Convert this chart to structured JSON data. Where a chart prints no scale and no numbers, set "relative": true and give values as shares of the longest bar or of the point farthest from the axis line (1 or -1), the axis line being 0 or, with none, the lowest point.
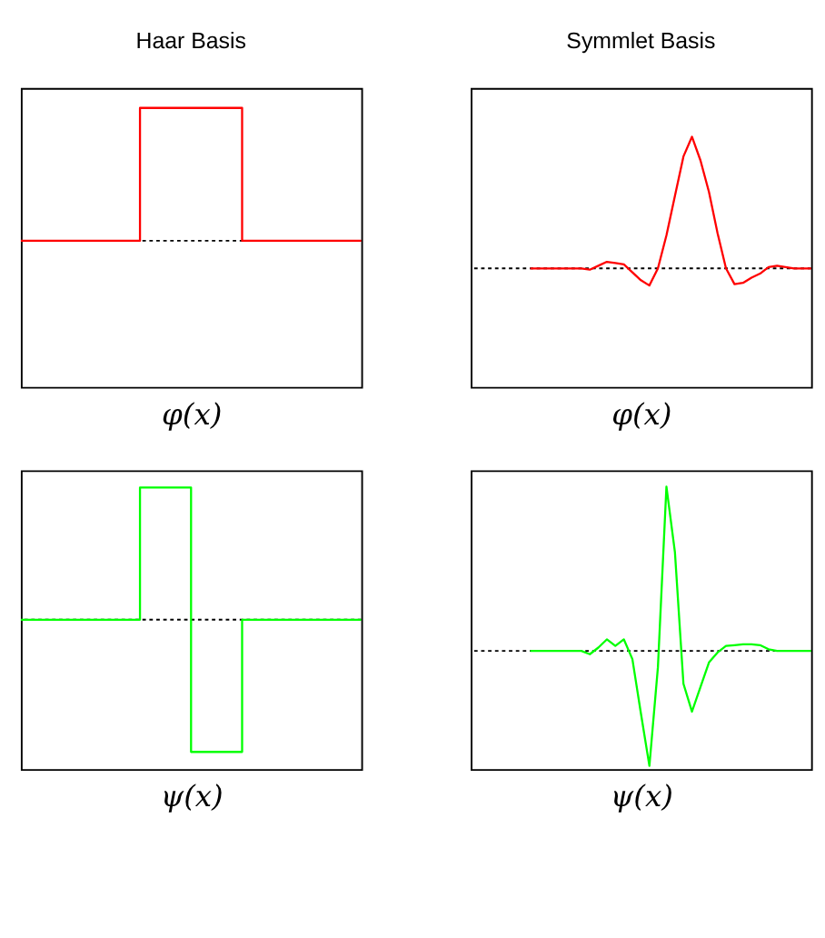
{
  "chart_data": [
    {
      "type": "step",
      "relative": true,
      "title": "Haar Basis",
      "xlabel": "φ(x)",
      "tick_labels": false,
      "grid": false,
      "categories": [
        null,
        null,
        null,
        null,
        null,
        null,
        null,
        null,
        null,
        null,
        null,
        null,
        null,
        null,
        null,
        null,
        null,
        null,
        null,
        null,
        null
      ],
      "series": [
        {
          "color": "#ff0000",
          "line_style": "solid",
          "values": [
            0,
            0,
            0,
            0,
            0,
            0,
            0,
            1,
            1,
            1,
            1,
            1,
            1,
            0,
            0,
            0,
            0,
            0,
            0,
            0,
            0
          ]
        }
      ],
      "ref_lines": [
        {
          "axis": "y",
          "value": 0,
          "color": "#000000",
          "line_style": "dotted"
        }
      ]
    },
    {
      "type": "line",
      "relative": true,
      "title": "Symmlet Basis",
      "xlabel": "φ(x)",
      "tick_labels": false,
      "grid": false,
      "categories": [
        null,
        null,
        null,
        null,
        null,
        null,
        null,
        null,
        null,
        null,
        null,
        null,
        null,
        null,
        null,
        null,
        null,
        null,
        null,
        null,
        null,
        null,
        null,
        null,
        null,
        null,
        null,
        null,
        null,
        null,
        null,
        null,
        null,
        null,
        null,
        null,
        null,
        null,
        null,
        null,
        null
      ],
      "ref_lines": [
        {
          "axis": "y",
          "value": 0,
          "color": "#000000",
          "line_style": "dotted"
        }
      ],
      "series": [
        {
          "color": "#ff0000",
          "line_style": "solid",
          "values": [
            null,
            null,
            null,
            null,
            null,
            null,
            null,
            0,
            0,
            0,
            0,
            0,
            0,
            0,
            -0.01,
            0.02,
            0.05,
            0.04,
            0.03,
            -0.03,
            -0.09,
            -0.13,
            0,
            0.25,
            0.55,
            0.85,
            1,
            0.82,
            0.58,
            0.27,
            0,
            -0.12,
            -0.11,
            -0.07,
            -0.04,
            0.01,
            0.02,
            0.01,
            0,
            0,
            0
          ]
        }
      ]
    },
    {
      "type": "step",
      "relative": true,
      "xlabel": "ψ(x)",
      "tick_labels": false,
      "grid": false,
      "categories": [
        null,
        null,
        null,
        null,
        null,
        null,
        null,
        null,
        null,
        null,
        null,
        null,
        null,
        null,
        null,
        null,
        null,
        null,
        null,
        null,
        null
      ],
      "series": [
        {
          "color": "#00ff00",
          "line_style": "solid",
          "values": [
            0,
            0,
            0,
            0,
            0,
            0,
            0,
            1,
            1,
            1,
            -1,
            -1,
            -1,
            0,
            0,
            0,
            0,
            0,
            0,
            0,
            0
          ]
        }
      ],
      "ref_lines": [
        {
          "axis": "y",
          "value": 0,
          "color": "#000000",
          "line_style": "dotted"
        }
      ]
    },
    {
      "type": "line",
      "relative": true,
      "xlabel": "ψ(x)",
      "tick_labels": false,
      "grid": false,
      "categories": [
        null,
        null,
        null,
        null,
        null,
        null,
        null,
        null,
        null,
        null,
        null,
        null,
        null,
        null,
        null,
        null,
        null,
        null,
        null,
        null,
        null,
        null,
        null,
        null,
        null,
        null,
        null,
        null,
        null,
        null,
        null,
        null,
        null,
        null,
        null,
        null,
        null,
        null,
        null,
        null,
        null
      ],
      "ref_lines": [
        {
          "axis": "y",
          "value": 0,
          "color": "#000000",
          "line_style": "dotted"
        }
      ],
      "series": [
        {
          "color": "#00ff00",
          "line_style": "solid",
          "values": [
            null,
            null,
            null,
            null,
            null,
            null,
            null,
            0,
            0,
            0,
            0,
            0,
            0,
            0,
            -0.02,
            0.02,
            0.07,
            0.03,
            0.07,
            -0.05,
            -0.38,
            -0.7,
            -0.1,
            1,
            0.6,
            -0.2,
            -0.37,
            -0.22,
            -0.07,
            -0.01,
            0.03,
            0.035,
            0.04,
            0.04,
            0.035,
            0.01,
            0,
            0,
            0,
            0,
            0
          ]
        }
      ]
    }
  ]
}
